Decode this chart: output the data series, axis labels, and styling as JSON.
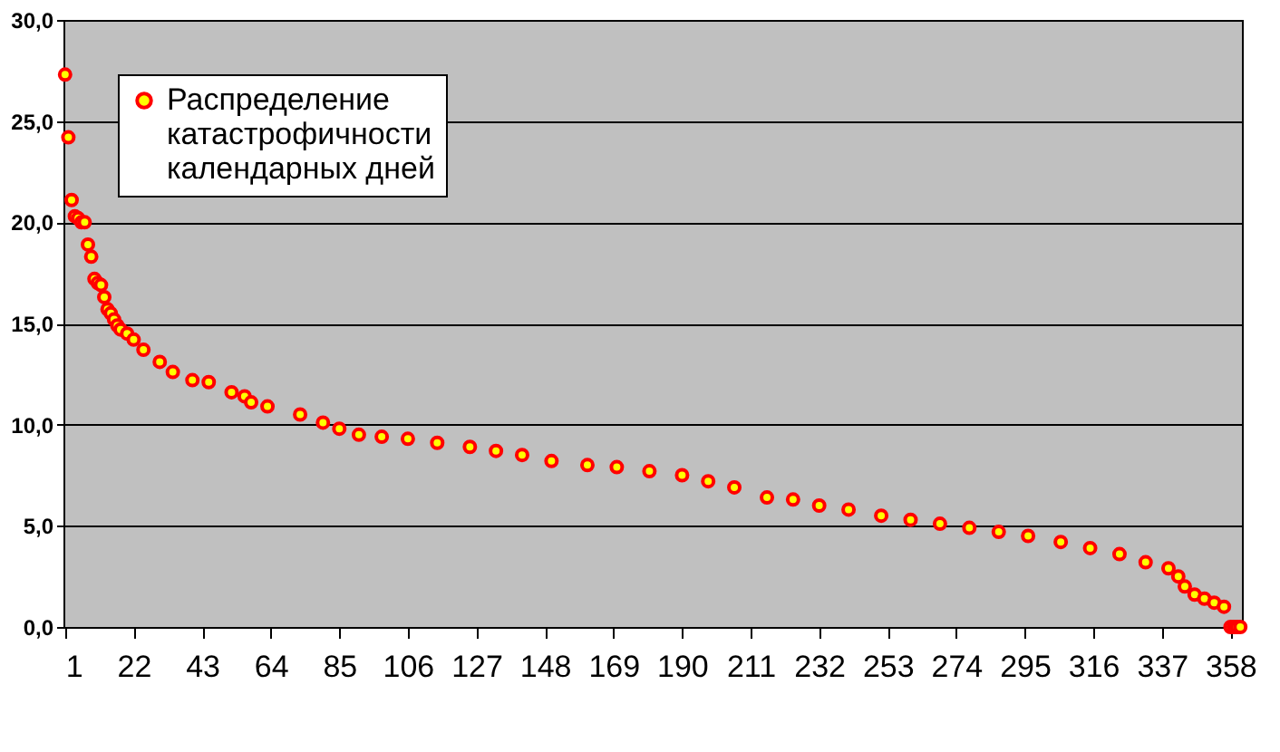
{
  "chart_data": {
    "type": "scatter",
    "marker": "circle",
    "legend": "top left",
    "grid": "y",
    "xlim": [
      0.5,
      361.5
    ],
    "xticks": [
      1,
      22,
      43,
      64,
      85,
      106,
      127,
      148,
      169,
      190,
      211,
      232,
      253,
      274,
      295,
      316,
      337,
      358
    ],
    "ylim": [
      0,
      30
    ],
    "yticks": [
      {
        "value": 0,
        "label": "0,0"
      },
      {
        "value": 5,
        "label": "5,0"
      },
      {
        "value": 10,
        "label": "10,0"
      },
      {
        "value": 15,
        "label": "15,0"
      },
      {
        "value": 20,
        "label": "20,0"
      },
      {
        "value": 25,
        "label": "25,0"
      },
      {
        "value": 30,
        "label": "30,0"
      }
    ],
    "series": [
      {
        "name": "Распределение катастрофичности календарных дней",
        "color": "#ff0000",
        "x": [
          1,
          2,
          3,
          4,
          5,
          6,
          7,
          8,
          9,
          10,
          11,
          12,
          13,
          14,
          15,
          16,
          17,
          18,
          20,
          22,
          25,
          30,
          34,
          40,
          45,
          52,
          56,
          58,
          63,
          73,
          80,
          85,
          91,
          98,
          106,
          115,
          125,
          133,
          141,
          150,
          161,
          170,
          180,
          190,
          198,
          206,
          216,
          224,
          232,
          241,
          251,
          260,
          269,
          278,
          287,
          296,
          306,
          315,
          324,
          332,
          339,
          342,
          344,
          347,
          350,
          353,
          356,
          358,
          359,
          360,
          361
        ],
        "values": [
          27.3,
          24.2,
          21.1,
          20.3,
          20.2,
          20.0,
          20.0,
          18.9,
          18.3,
          17.2,
          17.0,
          16.9,
          16.3,
          15.7,
          15.5,
          15.2,
          14.9,
          14.7,
          14.5,
          14.2,
          13.7,
          13.1,
          12.6,
          12.2,
          12.1,
          11.6,
          11.4,
          11.1,
          10.9,
          10.5,
          10.1,
          9.8,
          9.5,
          9.4,
          9.3,
          9.1,
          8.9,
          8.7,
          8.5,
          8.2,
          8.0,
          7.9,
          7.7,
          7.5,
          7.2,
          6.9,
          6.4,
          6.3,
          6.0,
          5.8,
          5.5,
          5.3,
          5.1,
          4.9,
          4.7,
          4.5,
          4.2,
          3.9,
          3.6,
          3.2,
          2.9,
          2.5,
          2.0,
          1.6,
          1.4,
          1.2,
          1.0,
          0.0,
          0.0,
          0.0,
          0.0
        ]
      }
    ]
  }
}
